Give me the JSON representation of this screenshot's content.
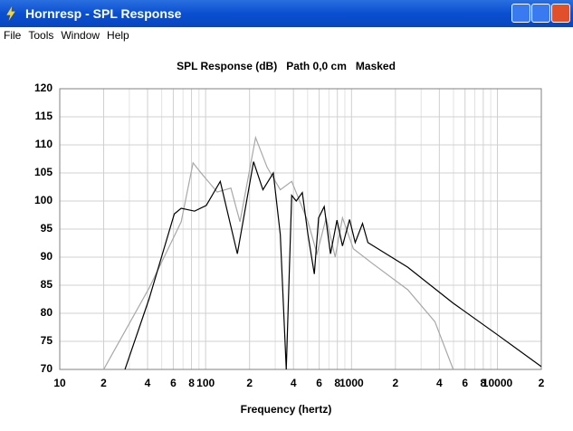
{
  "window": {
    "title": "Hornresp - SPL Response"
  },
  "menu": [
    "File",
    "Tools",
    "Window",
    "Help"
  ],
  "chart_data": {
    "type": "line",
    "title": "SPL Response (dB)   Path 0,0 cm   Masked",
    "xlabel": "Frequency (hertz)",
    "xscale": "log",
    "grid": true,
    "xlim": [
      10,
      20000
    ],
    "ylim": [
      70,
      120
    ],
    "yticks": [
      70,
      75,
      80,
      85,
      90,
      95,
      100,
      105,
      110,
      115,
      120
    ],
    "xticks": [
      10,
      {
        "value": 20,
        "label": "2"
      },
      {
        "value": 40,
        "label": "4"
      },
      {
        "value": 60,
        "label": "6"
      },
      {
        "value": 80,
        "label": "8"
      },
      100,
      {
        "value": 200,
        "label": "2"
      },
      {
        "value": 400,
        "label": "4"
      },
      {
        "value": 600,
        "label": "6"
      },
      {
        "value": 800,
        "label": "8"
      },
      1000,
      {
        "value": 2000,
        "label": "2"
      },
      {
        "value": 4000,
        "label": "4"
      },
      {
        "value": 6000,
        "label": "6"
      },
      {
        "value": 8000,
        "label": "8"
      },
      10000,
      {
        "value": 20000,
        "label": "2"
      }
    ],
    "xminorticks": [
      30,
      50,
      70,
      90,
      300,
      500,
      700,
      900,
      3000,
      5000,
      7000,
      9000
    ],
    "series": [
      {
        "color": "#000000",
        "x": [
          28,
          41,
          61,
          68,
          84,
          101,
          126,
          165,
          213,
          247,
          291,
          325,
          357,
          389,
          418,
          460,
          503,
          556,
          595,
          650,
          718,
          795,
          867,
          970,
          1060,
          1190,
          1295,
          2430,
          4980,
          10100,
          20000
        ],
        "values": [
          70,
          82.6,
          97.7,
          98.7,
          98.2,
          99.2,
          103.5,
          90.6,
          107,
          102,
          105,
          94,
          70,
          101,
          100,
          101.5,
          94,
          87,
          97,
          99,
          90.6,
          96.6,
          92,
          96.7,
          92.6,
          96,
          92.6,
          88.2,
          81.8,
          76.1,
          70.5
        ]
      },
      {
        "color": "#a8a8a8",
        "x": [
          20,
          41,
          68,
          82,
          93,
          120,
          149,
          172,
          220,
          264,
          325,
          389,
          503,
          580,
          670,
          773,
          867,
          1030,
          1370,
          2430,
          3730,
          4980
        ],
        "values": [
          70,
          84.5,
          96.3,
          106.8,
          105,
          101.6,
          102.3,
          96.3,
          111.3,
          106,
          102,
          103.5,
          96.3,
          90.6,
          97,
          90,
          97,
          91.5,
          89,
          84.2,
          78.5,
          70
        ]
      }
    ]
  }
}
